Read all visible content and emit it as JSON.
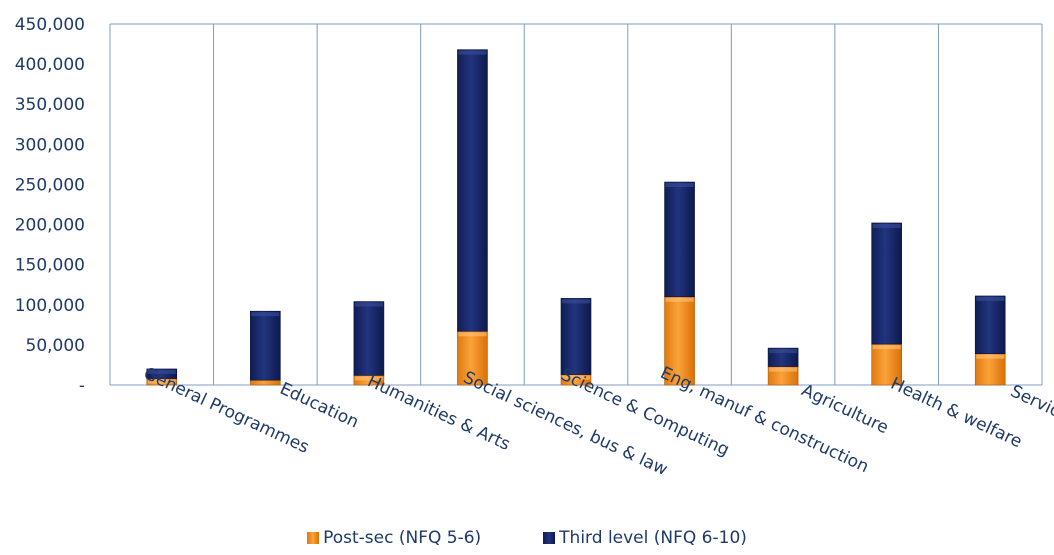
{
  "chart_data": {
    "type": "bar",
    "stacked": true,
    "categories": [
      "General Programmes",
      "Education",
      "Humanities & Arts",
      "Social sciences, bus & law",
      "Science & Computing",
      "Eng, manuf & construction",
      "Agriculture",
      "Health & welfare",
      "Services"
    ],
    "series": [
      {
        "name": "Post-sec (NFQ 5-6)",
        "color": "#f28c1c",
        "values": [
          8000,
          6000,
          12000,
          67000,
          13000,
          110000,
          23000,
          51000,
          39000
        ]
      },
      {
        "name": "Third level (NFQ 6-10)",
        "color": "#1a2a6c",
        "values": [
          12000,
          86000,
          92000,
          351000,
          95000,
          143000,
          23000,
          151000,
          72000
        ]
      }
    ],
    "y_ticks": [
      "-",
      "50,000",
      "100,000",
      "150,000",
      "200,000",
      "250,000",
      "300,000",
      "350,000",
      "400,000",
      "450,000"
    ],
    "ylim": [
      0,
      450000
    ],
    "title": "",
    "xlabel": "",
    "ylabel": "",
    "grid": "vertical category separators",
    "legend_position": "bottom"
  }
}
